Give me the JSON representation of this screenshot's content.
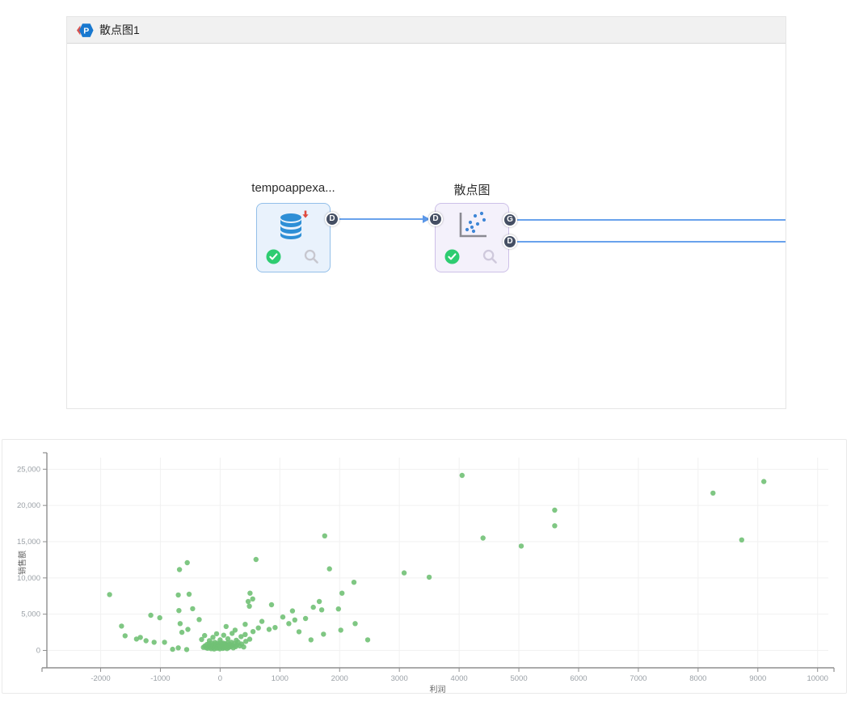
{
  "panel": {
    "title": "散点图1",
    "logo_letter": "P",
    "logo_color": "#1878cf",
    "logo_accent": "#d9534f"
  },
  "workflow": {
    "nodes": [
      {
        "label": "tempoappexa...",
        "icon": "database-icon",
        "status": "success",
        "ports": {
          "in": [],
          "out": [
            "D"
          ]
        }
      },
      {
        "label": "散点图",
        "icon": "scatter-icon",
        "status": "success",
        "ports": {
          "in": [
            "D"
          ],
          "out": [
            "G",
            "D"
          ]
        }
      }
    ],
    "edge_color": "#69a2ec"
  },
  "chart_data": {
    "type": "scatter",
    "title": "",
    "xlabel": "利润",
    "ylabel": "销售额",
    "legend": "none",
    "grid": true,
    "point_color": "#71c175",
    "axis_color": "#8f8f8f",
    "tick_label_color": "#9aa0a6",
    "axis_title_color": "#666666",
    "xlim": [
      -2900,
      10180
    ],
    "ylim": [
      -2400,
      26600
    ],
    "x_ticks": [
      -2000,
      -1000,
      0,
      1000,
      2000,
      3000,
      4000,
      5000,
      6000,
      7000,
      8000,
      9000,
      10000
    ],
    "x_tick_labels": [
      "-2000",
      "-1000",
      "0",
      "1000",
      "2000",
      "3000",
      "4000",
      "5000",
      "6000",
      "7000",
      "8000",
      "9000",
      "10000"
    ],
    "y_ticks": [
      0,
      5000,
      10000,
      15000,
      20000,
      25000
    ],
    "y_tick_labels": [
      "0",
      "5,000",
      "10,000",
      "15,000",
      "20,000",
      "25,000"
    ],
    "points": [
      [
        4050,
        24150
      ],
      [
        9100,
        23300
      ],
      [
        8250,
        21700
      ],
      [
        5600,
        19350
      ],
      [
        5600,
        17200
      ],
      [
        4400,
        15500
      ],
      [
        8730,
        15250
      ],
      [
        5040,
        14400
      ],
      [
        1750,
        15800
      ],
      [
        -550,
        12100
      ],
      [
        -680,
        11150
      ],
      [
        600,
        12550
      ],
      [
        1830,
        11250
      ],
      [
        3080,
        10700
      ],
      [
        3500,
        10100
      ],
      [
        2240,
        9400
      ],
      [
        -1850,
        7700
      ],
      [
        -700,
        7650
      ],
      [
        -520,
        7750
      ],
      [
        500,
        7900
      ],
      [
        545,
        7100
      ],
      [
        490,
        6100
      ],
      [
        470,
        6750
      ],
      [
        860,
        6300
      ],
      [
        -460,
        5750
      ],
      [
        -690,
        5500
      ],
      [
        -1160,
        4850
      ],
      [
        -1010,
        4500
      ],
      [
        1210,
        5450
      ],
      [
        1250,
        4200
      ],
      [
        1430,
        4400
      ],
      [
        1560,
        5950
      ],
      [
        1660,
        6750
      ],
      [
        1700,
        5600
      ],
      [
        1980,
        5720
      ],
      [
        2040,
        7900
      ],
      [
        -350,
        4260
      ],
      [
        -540,
        2900
      ],
      [
        -670,
        3700
      ],
      [
        -640,
        2500
      ],
      [
        100,
        3300
      ],
      [
        250,
        2800
      ],
      [
        420,
        3600
      ],
      [
        550,
        2600
      ],
      [
        640,
        3100
      ],
      [
        700,
        4000
      ],
      [
        820,
        2900
      ],
      [
        920,
        3150
      ],
      [
        1050,
        4600
      ],
      [
        1150,
        3700
      ],
      [
        1320,
        2580
      ],
      [
        1520,
        1460
      ],
      [
        1730,
        2240
      ],
      [
        2020,
        2800
      ],
      [
        2260,
        3700
      ],
      [
        2470,
        1460
      ],
      [
        -1650,
        3360
      ],
      [
        -1590,
        2020
      ],
      [
        -1400,
        1570
      ],
      [
        -1335,
        1790
      ],
      [
        -1240,
        1340
      ],
      [
        -1105,
        1120
      ],
      [
        -930,
        1120
      ],
      [
        -795,
        150
      ],
      [
        -700,
        350
      ],
      [
        -560,
        120
      ],
      [
        -310,
        1500
      ],
      [
        -260,
        2050
      ],
      [
        -180,
        1350
      ],
      [
        -120,
        1800
      ],
      [
        -60,
        2300
      ],
      [
        0,
        1450
      ],
      [
        60,
        2100
      ],
      [
        130,
        1600
      ],
      [
        200,
        2350
      ],
      [
        270,
        1400
      ],
      [
        350,
        1900
      ],
      [
        420,
        2200
      ],
      [
        495,
        1550
      ],
      [
        -280,
        420
      ],
      [
        -255,
        610
      ],
      [
        -235,
        380
      ],
      [
        -220,
        820
      ],
      [
        -210,
        300
      ],
      [
        -195,
        540
      ],
      [
        -185,
        960
      ],
      [
        -170,
        420
      ],
      [
        -160,
        700
      ],
      [
        -150,
        240
      ],
      [
        -140,
        1020
      ],
      [
        -130,
        560
      ],
      [
        -120,
        380
      ],
      [
        -110,
        840
      ],
      [
        -100,
        200
      ],
      [
        -95,
        640
      ],
      [
        -85,
        1100
      ],
      [
        -75,
        460
      ],
      [
        -65,
        760
      ],
      [
        -55,
        300
      ],
      [
        -45,
        980
      ],
      [
        -35,
        560
      ],
      [
        -25,
        380
      ],
      [
        -15,
        880
      ],
      [
        -5,
        220
      ],
      [
        5,
        660
      ],
      [
        15,
        1060
      ],
      [
        25,
        440
      ],
      [
        35,
        780
      ],
      [
        45,
        280
      ],
      [
        55,
        1000
      ],
      [
        65,
        580
      ],
      [
        75,
        360
      ],
      [
        85,
        900
      ],
      [
        95,
        480
      ],
      [
        105,
        720
      ],
      [
        115,
        260
      ],
      [
        125,
        1040
      ],
      [
        135,
        600
      ],
      [
        145,
        400
      ],
      [
        160,
        860
      ],
      [
        175,
        520
      ],
      [
        190,
        1120
      ],
      [
        205,
        680
      ],
      [
        220,
        360
      ],
      [
        240,
        940
      ],
      [
        260,
        520
      ],
      [
        280,
        760
      ],
      [
        300,
        1150
      ],
      [
        330,
        620
      ],
      [
        360,
        880
      ],
      [
        395,
        480
      ],
      [
        430,
        1250
      ]
    ]
  }
}
